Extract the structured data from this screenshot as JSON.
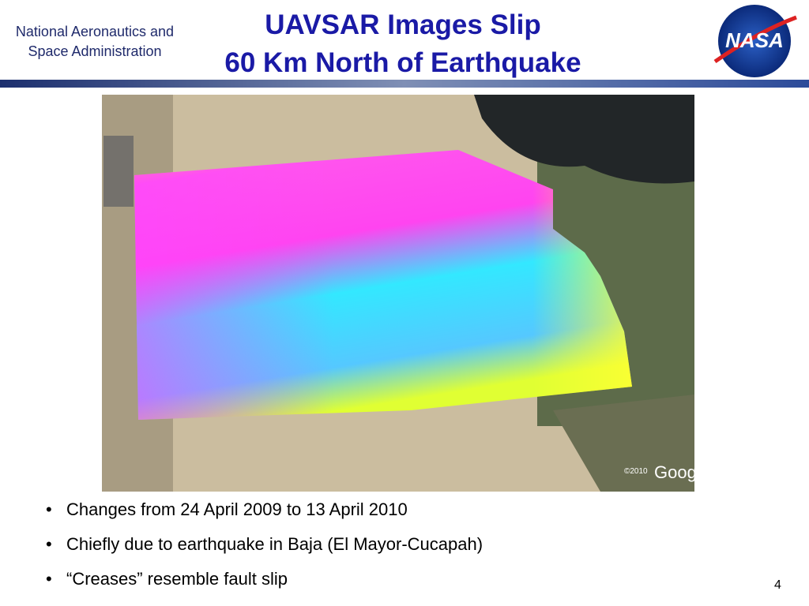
{
  "header": {
    "organization": [
      "National Aeronautics and",
      "Space Administration"
    ],
    "title": [
      "UAVSAR Images Slip",
      "60 Km North of Earthquake"
    ],
    "logo": {
      "text": "NASA"
    }
  },
  "figure": {
    "watermark": {
      "copyright": "©2010",
      "brand": "Google"
    }
  },
  "bullets": [
    "Changes from 24 April 2009 to 13 April 2010",
    "Chiefly due to earthquake in Baja (El Mayor-Cucapah)",
    "“Creases” resemble fault slip"
  ],
  "footer": {
    "page_number": "4"
  }
}
